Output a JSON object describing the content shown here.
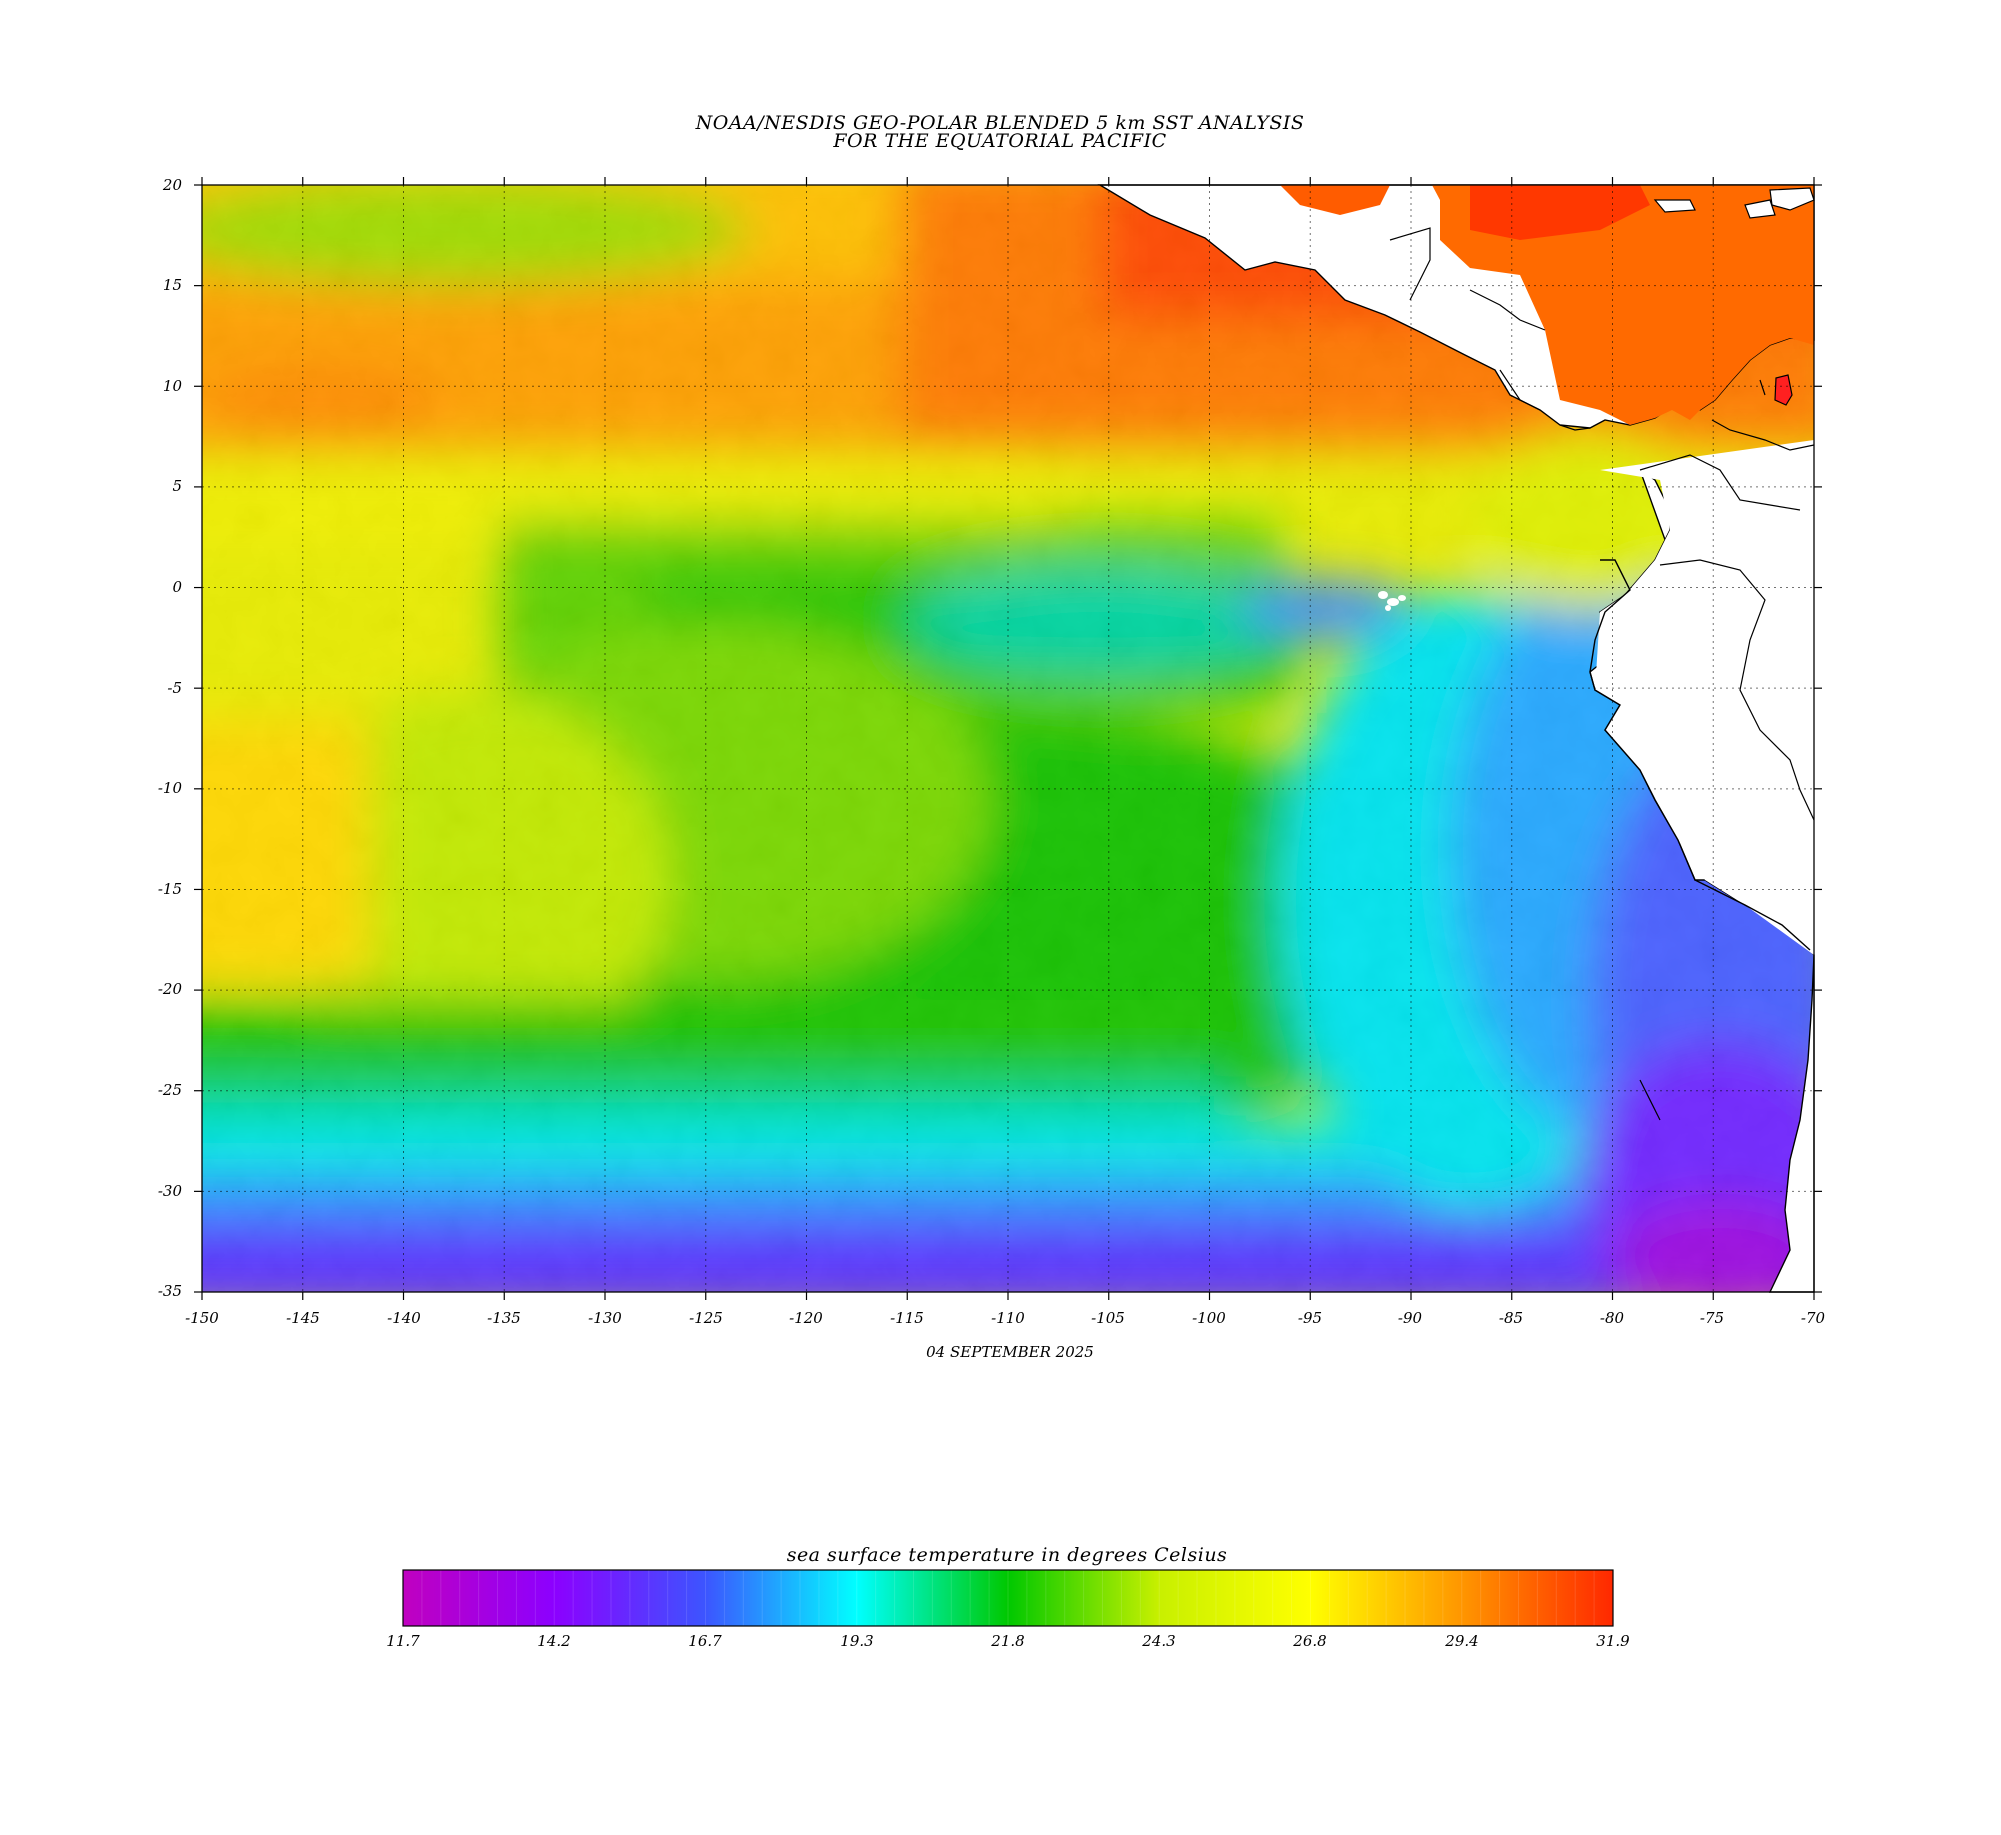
{
  "title_line1": "NOAA/NESDIS GEO-POLAR BLENDED 5 km SST ANALYSIS",
  "title_line2": "FOR THE EQUATORIAL PACIFIC",
  "date_label": "04 SEPTEMBER 2025",
  "colorbar": {
    "label": "sea surface temperature in degrees Celsius",
    "min": 11.7,
    "max": 31.9,
    "tick_labels": [
      "11.7",
      "14.2",
      "16.7",
      "19.3",
      "21.8",
      "24.3",
      "26.8",
      "29.4",
      "31.9"
    ],
    "colors": [
      "#c000c0",
      "#8c00ff",
      "#3c55ff",
      "#00ffff",
      "#00c800",
      "#c8f000",
      "#ffff00",
      "#ff9600",
      "#ff2800"
    ]
  },
  "map": {
    "lon_range": [
      -150,
      -70
    ],
    "lat_range": [
      -35,
      20
    ],
    "x_tick_labels": [
      "-150",
      "-145",
      "-140",
      "-135",
      "-130",
      "-125",
      "-120",
      "-115",
      "-110",
      "-105",
      "-100",
      "-95",
      "-90",
      "-85",
      "-80",
      "-75",
      "-70"
    ],
    "y_tick_labels": [
      "20",
      "15",
      "10",
      "5",
      "0",
      "-5",
      "-10",
      "-15",
      "-20",
      "-25",
      "-30",
      "-35"
    ],
    "grid": "dotted",
    "land_color": "#ffffff",
    "coastline_color": "#000000"
  }
}
